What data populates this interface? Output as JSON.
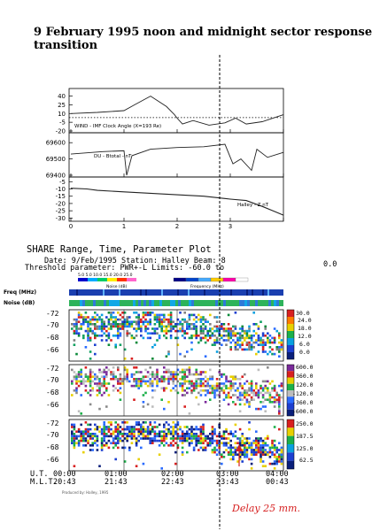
{
  "page": {
    "title_line1": "9 February 1995 noon and midnight sector responses to IMF",
    "title_line2": "transition",
    "annotation": "Delay 25 mm."
  },
  "chart_data": [
    {
      "type": "line",
      "panel": "wind-clock-angle",
      "label": "WIND - IMF Clock Angle (X=193 Re)",
      "ylim": [
        -20,
        50
      ],
      "yticks": [
        40,
        25,
        10,
        -5,
        -20
      ],
      "dotted_reference": -5,
      "x": [
        0,
        0.5,
        1.0,
        1.2,
        1.5,
        1.8,
        1.95,
        2.0,
        2.1,
        2.3,
        2.6,
        2.9,
        3.1,
        3.3,
        3.6,
        3.9,
        4.0
      ],
      "y": [
        10,
        12,
        15,
        25,
        40,
        22,
        8,
        2,
        -8,
        -2,
        -10,
        -6,
        2,
        -8,
        -4,
        5,
        8
      ]
    },
    {
      "type": "line",
      "panel": "du-btotal",
      "label": "DU - Btotal - nT",
      "ylim": [
        69400,
        69650
      ],
      "yticks": [
        69600,
        69500,
        69400
      ],
      "x": [
        0,
        0.6,
        1.0,
        1.05,
        1.15,
        1.5,
        2.0,
        2.5,
        2.9,
        3.05,
        3.2,
        3.4,
        3.5,
        3.7,
        4.0
      ],
      "y": [
        69530,
        69545,
        69550,
        69400,
        69520,
        69560,
        69570,
        69575,
        69590,
        69470,
        69500,
        69430,
        69560,
        69510,
        69540
      ]
    },
    {
      "type": "line",
      "panel": "halley-z",
      "label": "Halley - Z nT",
      "ylim": [
        -31,
        -3
      ],
      "yticks": [
        -5,
        -10,
        -15,
        -20,
        -25,
        -30
      ],
      "x": [
        0,
        0.3,
        0.5,
        1.0,
        1.5,
        2.0,
        2.5,
        3.0,
        3.3,
        3.6,
        3.8,
        4.0
      ],
      "y": [
        -9.5,
        -10,
        -11,
        -12,
        -13,
        -14,
        -15,
        -17,
        -18,
        -22,
        -25,
        -28
      ]
    }
  ],
  "x_axis": {
    "ticks": [
      "0",
      "1",
      "2",
      "3"
    ]
  },
  "share": {
    "title": "SHARE Range, Time, Parameter Plot",
    "date_line": "Date: 9/Feb/1995  Station: Halley  Beam: 8",
    "threshold_line": "Threshold parameter: PWR+-L     Limits: -60.0 to",
    "limit_end": "0.0",
    "noise_scale": "5.0 5.0 10.0 15.0 20.0 25.0",
    "noise_caption": "Noise (dB)",
    "freq_caption": "Frequency (MHz)",
    "freq_row_label": "Freq (MHz)",
    "noise_row_label": "Noise (dB)",
    "y_ticks": [
      "-72",
      "-70",
      "-68",
      "-66"
    ],
    "scale1": [
      "30.0",
      "24.0",
      "18.0",
      "12.0",
      "6.0",
      "0.0"
    ],
    "scale2": [
      "600.0",
      "360.0",
      "120.0",
      "-120.0",
      "-360.0",
      "-600.0"
    ],
    "scale3": [
      "250.0",
      "187.5",
      "125.0",
      "62.5"
    ],
    "ut_label": "U.T.",
    "ml_label": "M.L.T.",
    "ut_times": [
      "00:00",
      "01:00",
      "02:00",
      "03:00",
      "04:00"
    ],
    "mlt_times": [
      "20:43",
      "21:43",
      "22:43",
      "23:43",
      "00:43"
    ],
    "footer": "Produced by: Halley, 1995"
  },
  "colors": {
    "noise_scale": [
      "#0000cc",
      "#00aaff",
      "#00cc66",
      "#ffee00",
      "#ff3300",
      "#ff66cc"
    ],
    "freq_scale": [
      "#000088",
      "#0044cc",
      "#44aaff",
      "#ffcc00",
      "#ff00aa",
      "#ffffff"
    ]
  }
}
